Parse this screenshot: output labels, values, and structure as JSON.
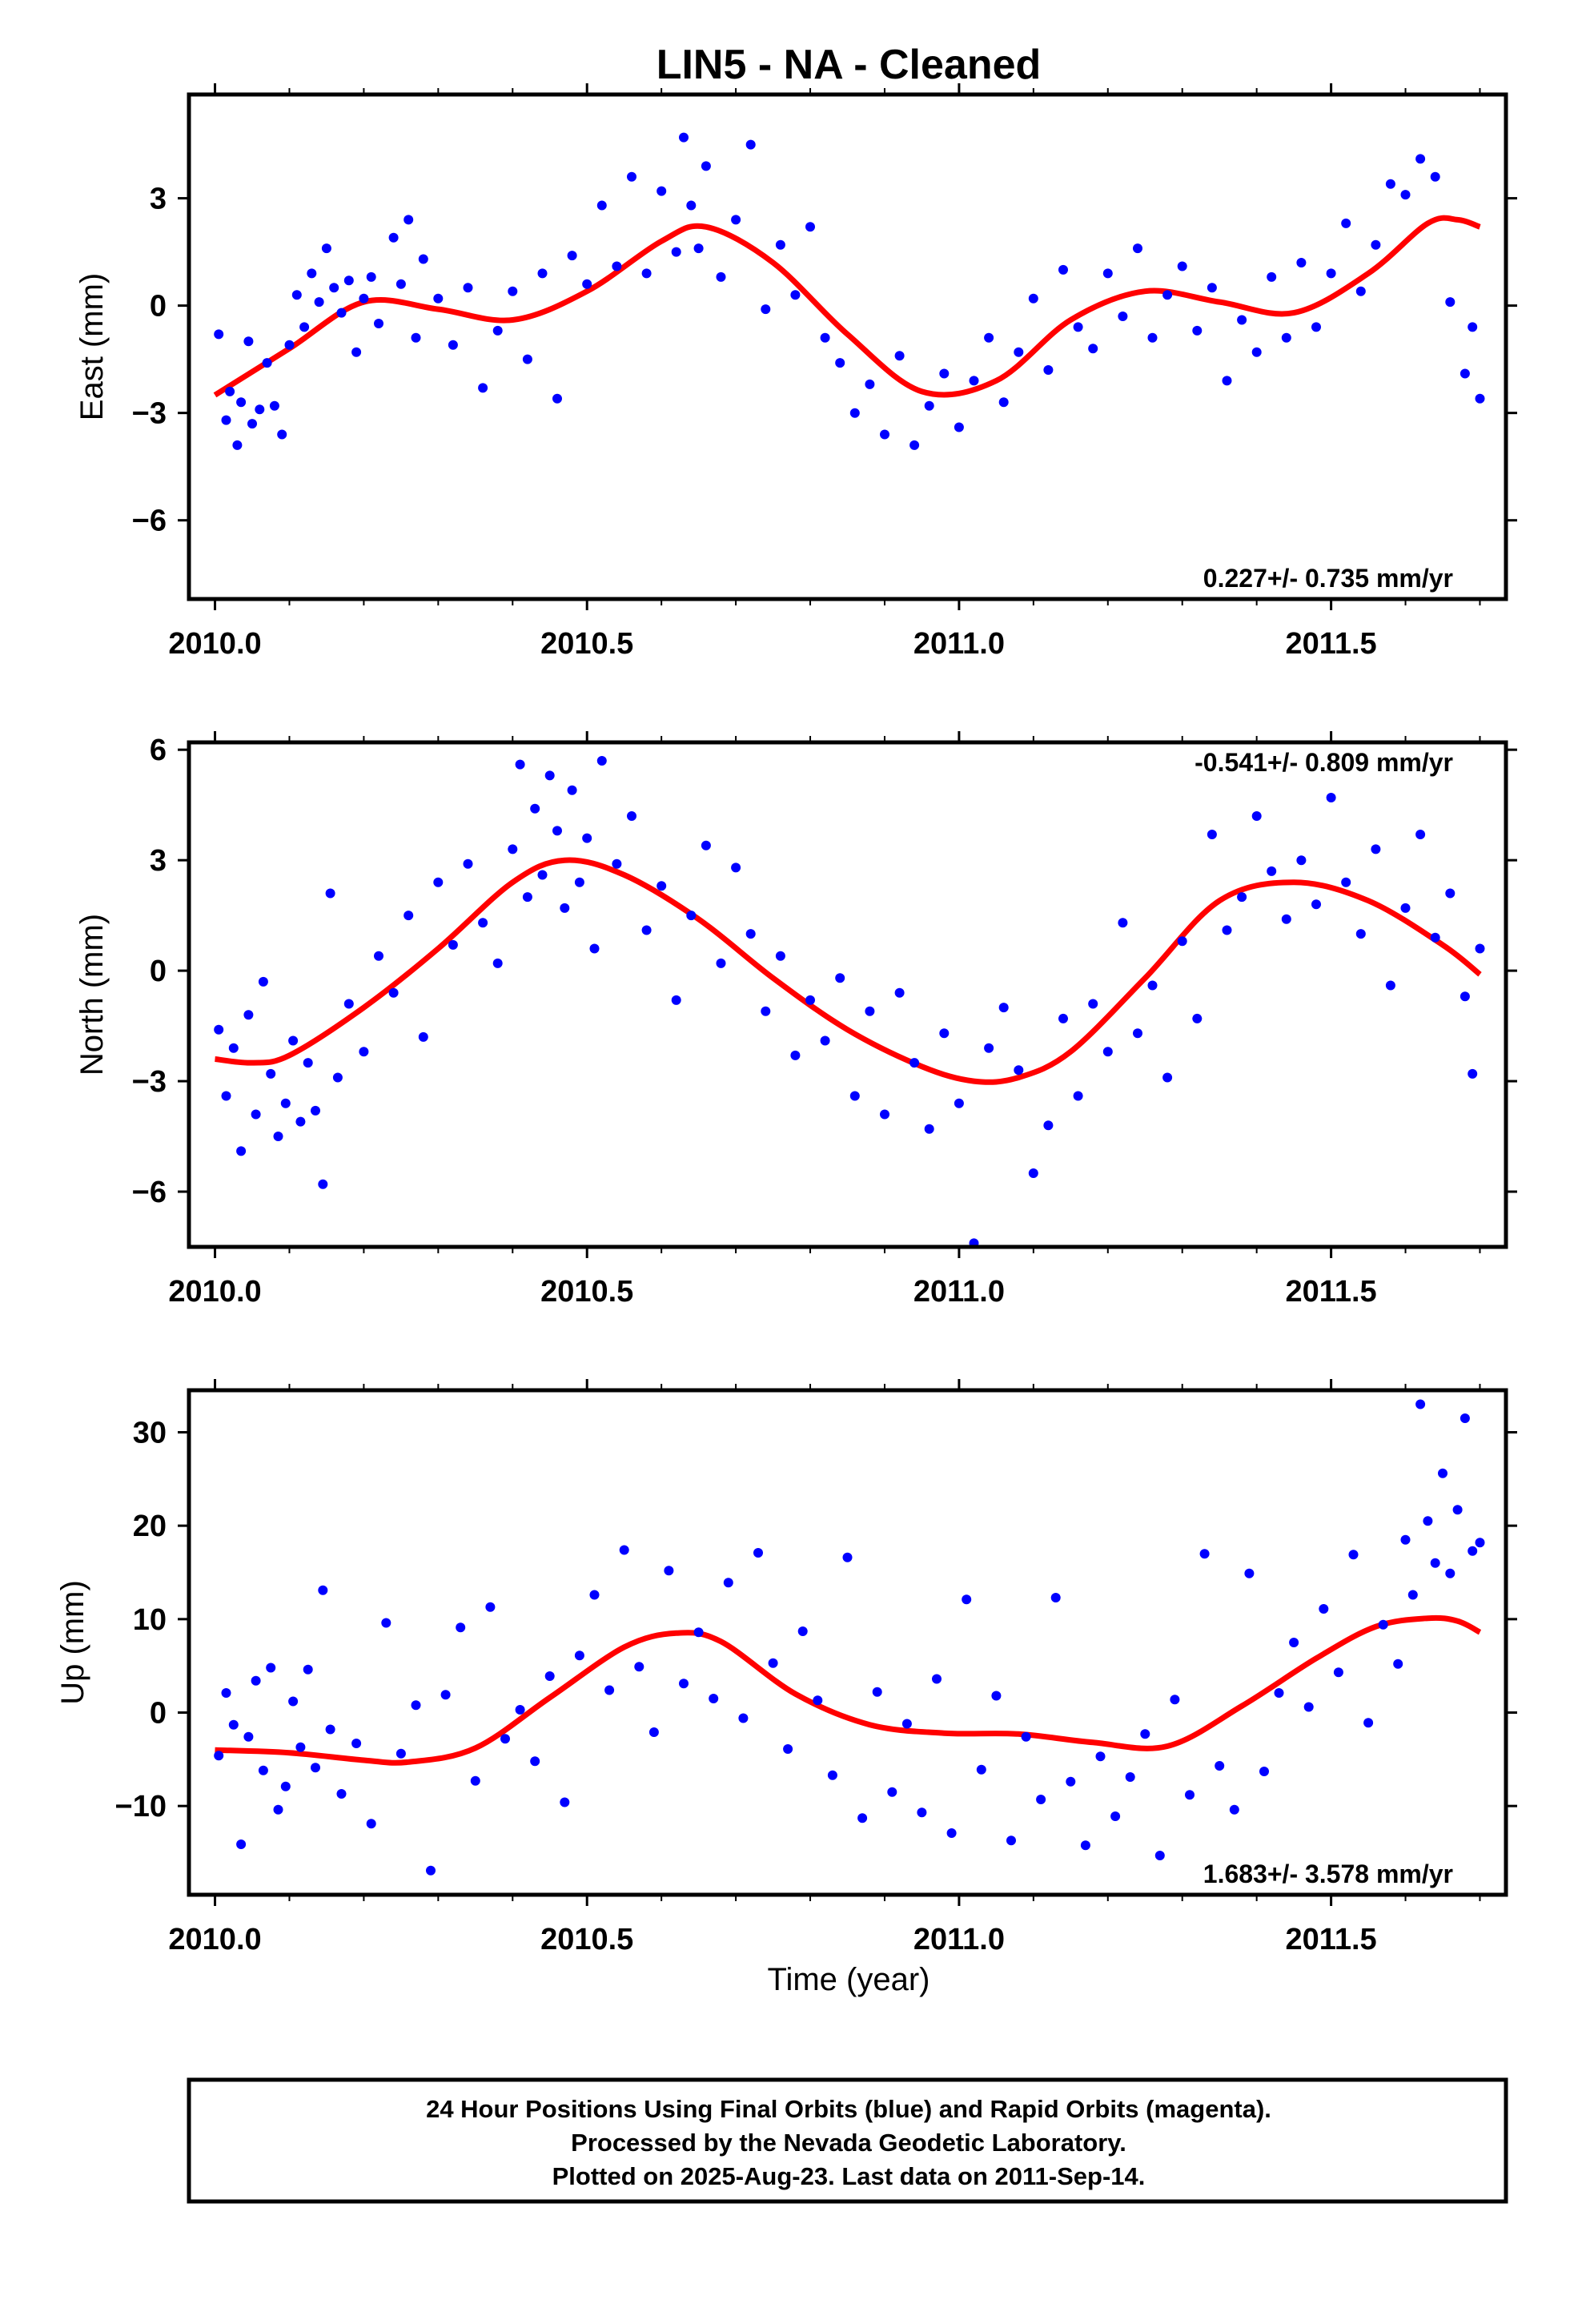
{
  "title": "LIN5  - NA - Cleaned",
  "xlabel": "Time (year)",
  "footer": {
    "lines": [
      "24 Hour Positions Using Final Orbits (blue) and Rapid Orbits (magenta).",
      "Processed by the Nevada Geodetic Laboratory.",
      "Plotted on 2025-Aug-23. Last data on 2011-Sep-14."
    ]
  },
  "colors": {
    "points": "#0000ff",
    "fit": "#ff0000",
    "frame": "#000000"
  },
  "chart_data": [
    {
      "type": "scatter",
      "ylabel": "East (mm)",
      "rate": "0.227+/- 0.735 mm/yr",
      "xlim": [
        2009.965,
        2011.735
      ],
      "ylim": [
        -8.2,
        5.9
      ],
      "xticks": [
        2010.0,
        2010.5,
        2011.0,
        2011.5
      ],
      "xtick_labels": [
        "2010.0",
        "2010.5",
        "2011.0",
        "2011.5"
      ],
      "yticks": [
        3,
        0,
        -3,
        -6
      ],
      "ytick_labels": [
        "3",
        "0",
        "−3",
        "−6"
      ],
      "fit": {
        "x": [
          2010.0,
          2010.1,
          2010.2,
          2010.3,
          2010.4,
          2010.5,
          2010.6,
          2010.66,
          2010.75,
          2010.85,
          2010.95,
          2011.05,
          2011.15,
          2011.25,
          2011.35,
          2011.45,
          2011.55,
          2011.63,
          2011.67,
          2011.7
        ],
        "y": [
          -2.5,
          -1.2,
          0.1,
          -0.1,
          -0.4,
          0.4,
          1.8,
          2.2,
          1.2,
          -0.8,
          -2.4,
          -2.1,
          -0.4,
          0.4,
          0.1,
          -0.2,
          0.9,
          2.3,
          2.4,
          2.2
        ]
      },
      "points": {
        "x": [
          2010.005,
          2010.015,
          2010.02,
          2010.03,
          2010.035,
          2010.045,
          2010.05,
          2010.06,
          2010.07,
          2010.08,
          2010.09,
          2010.1,
          2010.11,
          2010.12,
          2010.13,
          2010.14,
          2010.15,
          2010.16,
          2010.17,
          2010.18,
          2010.19,
          2010.2,
          2010.21,
          2010.22,
          2010.24,
          2010.25,
          2010.26,
          2010.27,
          2010.28,
          2010.3,
          2010.32,
          2010.34,
          2010.36,
          2010.38,
          2010.4,
          2010.42,
          2010.44,
          2010.46,
          2010.48,
          2010.5,
          2010.52,
          2010.54,
          2010.56,
          2010.58,
          2010.6,
          2010.62,
          2010.63,
          2010.64,
          2010.65,
          2010.66,
          2010.68,
          2010.7,
          2010.72,
          2010.74,
          2010.76,
          2010.78,
          2010.8,
          2010.82,
          2010.84,
          2010.86,
          2010.88,
          2010.9,
          2010.92,
          2010.94,
          2010.96,
          2010.98,
          2011.0,
          2011.02,
          2011.04,
          2011.06,
          2011.08,
          2011.1,
          2011.12,
          2011.14,
          2011.16,
          2011.18,
          2011.2,
          2011.22,
          2011.24,
          2011.26,
          2011.28,
          2011.3,
          2011.32,
          2011.34,
          2011.36,
          2011.38,
          2011.4,
          2011.42,
          2011.44,
          2011.46,
          2011.48,
          2011.5,
          2011.52,
          2011.54,
          2011.56,
          2011.58,
          2011.6,
          2011.62,
          2011.64,
          2011.66,
          2011.68,
          2011.69,
          2011.7
        ],
        "y": [
          -0.8,
          -3.2,
          -2.4,
          -3.9,
          -2.7,
          -1.0,
          -3.3,
          -2.9,
          -1.6,
          -2.8,
          -3.6,
          -1.1,
          0.3,
          -0.6,
          0.9,
          0.1,
          1.6,
          0.5,
          -0.2,
          0.7,
          -1.3,
          0.2,
          0.8,
          -0.5,
          1.9,
          0.6,
          2.4,
          -0.9,
          1.3,
          0.2,
          -1.1,
          0.5,
          -2.3,
          -0.7,
          0.4,
          -1.5,
          0.9,
          -2.6,
          1.4,
          0.6,
          2.8,
          1.1,
          3.6,
          0.9,
          3.2,
          1.5,
          4.7,
          2.8,
          1.6,
          3.9,
          0.8,
          2.4,
          4.5,
          -0.1,
          1.7,
          0.3,
          2.2,
          -0.9,
          -1.6,
          -3.0,
          -2.2,
          -3.6,
          -1.4,
          -3.9,
          -2.8,
          -1.9,
          -3.4,
          -2.1,
          -0.9,
          -2.7,
          -1.3,
          0.2,
          -1.8,
          1.0,
          -0.6,
          -1.2,
          0.9,
          -0.3,
          1.6,
          -0.9,
          0.3,
          1.1,
          -0.7,
          0.5,
          -2.1,
          -0.4,
          -1.3,
          0.8,
          -0.9,
          1.2,
          -0.6,
          0.9,
          2.3,
          0.4,
          1.7,
          3.4,
          3.1,
          4.1,
          3.6,
          0.1,
          -1.9,
          -0.6,
          -2.6
        ]
      }
    },
    {
      "type": "scatter",
      "ylabel": "North (mm)",
      "rate": "-0.541+/- 0.809 mm/yr",
      "xlim": [
        2009.965,
        2011.735
      ],
      "ylim": [
        -7.5,
        6.2
      ],
      "xticks": [
        2010.0,
        2010.5,
        2011.0,
        2011.5
      ],
      "xtick_labels": [
        "2010.0",
        "2010.5",
        "2011.0",
        "2011.5"
      ],
      "yticks": [
        6,
        3,
        0,
        -3,
        -6
      ],
      "ytick_labels": [
        "6",
        "3",
        "0",
        "−3",
        "−6"
      ],
      "fit": {
        "x": [
          2010.0,
          2010.05,
          2010.1,
          2010.2,
          2010.3,
          2010.4,
          2010.47,
          2010.55,
          2010.65,
          2010.75,
          2010.85,
          2010.95,
          2011.02,
          2011.08,
          2011.15,
          2011.25,
          2011.35,
          2011.45,
          2011.55,
          2011.65,
          2011.7
        ],
        "y": [
          -2.4,
          -2.5,
          -2.3,
          -1.0,
          0.6,
          2.4,
          3.0,
          2.6,
          1.4,
          -0.2,
          -1.6,
          -2.6,
          -3.0,
          -2.9,
          -2.2,
          -0.2,
          1.9,
          2.4,
          1.9,
          0.7,
          -0.1
        ]
      },
      "points": {
        "x": [
          2010.005,
          2010.015,
          2010.025,
          2010.035,
          2010.045,
          2010.055,
          2010.065,
          2010.075,
          2010.085,
          2010.095,
          2010.105,
          2010.115,
          2010.125,
          2010.135,
          2010.145,
          2010.155,
          2010.165,
          2010.18,
          2010.2,
          2010.22,
          2010.24,
          2010.26,
          2010.28,
          2010.3,
          2010.32,
          2010.34,
          2010.36,
          2010.38,
          2010.4,
          2010.41,
          2010.42,
          2010.43,
          2010.44,
          2010.45,
          2010.46,
          2010.47,
          2010.48,
          2010.49,
          2010.5,
          2010.51,
          2010.52,
          2010.54,
          2010.56,
          2010.58,
          2010.6,
          2010.62,
          2010.64,
          2010.66,
          2010.68,
          2010.7,
          2010.72,
          2010.74,
          2010.76,
          2010.78,
          2010.8,
          2010.82,
          2010.84,
          2010.86,
          2010.88,
          2010.9,
          2010.92,
          2010.94,
          2010.96,
          2010.98,
          2011.0,
          2011.02,
          2011.04,
          2011.06,
          2011.08,
          2011.1,
          2011.12,
          2011.14,
          2011.16,
          2011.18,
          2011.2,
          2011.22,
          2011.24,
          2011.26,
          2011.28,
          2011.3,
          2011.32,
          2011.34,
          2011.36,
          2011.38,
          2011.4,
          2011.42,
          2011.44,
          2011.46,
          2011.48,
          2011.5,
          2011.52,
          2011.54,
          2011.56,
          2011.58,
          2011.6,
          2011.62,
          2011.64,
          2011.66,
          2011.68,
          2011.69,
          2011.7
        ],
        "y": [
          -1.6,
          -3.4,
          -2.1,
          -4.9,
          -1.2,
          -3.9,
          -0.3,
          -2.8,
          -4.5,
          -3.6,
          -1.9,
          -4.1,
          -2.5,
          -3.8,
          -5.8,
          2.1,
          -2.9,
          -0.9,
          -2.2,
          0.4,
          -0.6,
          1.5,
          -1.8,
          2.4,
          0.7,
          2.9,
          1.3,
          0.2,
          3.3,
          5.6,
          2.0,
          4.4,
          2.6,
          5.3,
          3.8,
          1.7,
          4.9,
          2.4,
          3.6,
          0.6,
          5.7,
          2.9,
          4.2,
          1.1,
          2.3,
          -0.8,
          1.5,
          3.4,
          0.2,
          2.8,
          1.0,
          -1.1,
          0.4,
          -2.3,
          -0.8,
          -1.9,
          -0.2,
          -3.4,
          -1.1,
          -3.9,
          -0.6,
          -2.5,
          -4.3,
          -1.7,
          -3.6,
          -7.4,
          -2.1,
          -1.0,
          -2.7,
          -5.5,
          -4.2,
          -1.3,
          -3.4,
          -0.9,
          -2.2,
          1.3,
          -1.7,
          -0.4,
          -2.9,
          0.8,
          -1.3,
          3.7,
          1.1,
          2.0,
          4.2,
          2.7,
          1.4,
          3.0,
          1.8,
          4.7,
          2.4,
          1.0,
          3.3,
          -0.4,
          1.7,
          3.7,
          0.9,
          2.1,
          -0.7,
          -2.8,
          0.6
        ]
      }
    },
    {
      "type": "scatter",
      "ylabel": "Up (mm)",
      "rate": "1.683+/- 3.578 mm/yr",
      "xlim": [
        2009.965,
        2011.735
      ],
      "ylim": [
        -19.5,
        34.5
      ],
      "xticks": [
        2010.0,
        2010.5,
        2011.0,
        2011.5
      ],
      "xtick_labels": [
        "2010.0",
        "2010.5",
        "2011.0",
        "2011.5"
      ],
      "yticks": [
        30,
        20,
        10,
        0,
        -10
      ],
      "ytick_labels": [
        "30",
        "20",
        "10",
        "0",
        "−10"
      ],
      "fit": {
        "x": [
          2010.0,
          2010.1,
          2010.2,
          2010.26,
          2010.35,
          2010.45,
          2010.55,
          2010.62,
          2010.68,
          2010.78,
          2010.88,
          2010.98,
          2011.08,
          2011.18,
          2011.28,
          2011.38,
          2011.48,
          2011.56,
          2011.63,
          2011.67,
          2011.7
        ],
        "y": [
          -4.0,
          -4.3,
          -5.1,
          -5.3,
          -3.8,
          1.6,
          7.0,
          8.5,
          7.6,
          2.0,
          -1.3,
          -2.2,
          -2.3,
          -3.2,
          -3.6,
          0.7,
          5.8,
          9.2,
          10.1,
          9.8,
          8.6
        ]
      },
      "points": {
        "x": [
          2010.005,
          2010.015,
          2010.025,
          2010.035,
          2010.045,
          2010.055,
          2010.065,
          2010.075,
          2010.085,
          2010.095,
          2010.105,
          2010.115,
          2010.125,
          2010.135,
          2010.145,
          2010.155,
          2010.17,
          2010.19,
          2010.21,
          2010.23,
          2010.25,
          2010.27,
          2010.29,
          2010.31,
          2010.33,
          2010.35,
          2010.37,
          2010.39,
          2010.41,
          2010.43,
          2010.45,
          2010.47,
          2010.49,
          2010.51,
          2010.53,
          2010.55,
          2010.57,
          2010.59,
          2010.61,
          2010.63,
          2010.65,
          2010.67,
          2010.69,
          2010.71,
          2010.73,
          2010.75,
          2010.77,
          2010.79,
          2010.81,
          2010.83,
          2010.85,
          2010.87,
          2010.89,
          2010.91,
          2010.93,
          2010.95,
          2010.97,
          2010.99,
          2011.01,
          2011.03,
          2011.05,
          2011.07,
          2011.09,
          2011.11,
          2011.13,
          2011.15,
          2011.17,
          2011.19,
          2011.21,
          2011.23,
          2011.25,
          2011.27,
          2011.29,
          2011.31,
          2011.33,
          2011.35,
          2011.37,
          2011.39,
          2011.41,
          2011.43,
          2011.45,
          2011.47,
          2011.49,
          2011.51,
          2011.53,
          2011.55,
          2011.57,
          2011.59,
          2011.6,
          2011.61,
          2011.62,
          2011.63,
          2011.64,
          2011.65,
          2011.66,
          2011.67,
          2011.68,
          2011.69,
          2011.7
        ],
        "y": [
          -4.6,
          2.1,
          -1.3,
          -14.1,
          -2.6,
          3.4,
          -6.2,
          4.8,
          -10.4,
          -7.9,
          1.2,
          -3.7,
          4.6,
          -5.9,
          13.1,
          -1.8,
          -8.7,
          -3.3,
          -11.9,
          9.6,
          -4.4,
          0.8,
          -16.9,
          1.9,
          9.1,
          -7.3,
          11.3,
          -2.8,
          0.3,
          -5.2,
          3.9,
          -9.6,
          6.1,
          12.6,
          2.4,
          17.4,
          4.9,
          -2.1,
          15.2,
          3.1,
          8.6,
          1.5,
          13.9,
          -0.6,
          17.1,
          5.3,
          -3.9,
          8.7,
          1.3,
          -6.7,
          16.6,
          -11.3,
          2.2,
          -8.5,
          -1.2,
          -10.7,
          3.6,
          -12.9,
          12.1,
          -6.1,
          1.8,
          -13.7,
          -2.6,
          -9.3,
          12.3,
          -7.4,
          -14.2,
          -4.7,
          -11.1,
          -6.9,
          -2.3,
          -15.3,
          1.4,
          -8.8,
          17.0,
          -5.7,
          -10.4,
          14.9,
          -6.3,
          2.1,
          7.5,
          0.6,
          11.1,
          4.3,
          16.9,
          -1.1,
          9.4,
          5.2,
          18.5,
          12.6,
          33.0,
          20.5,
          16.0,
          25.6,
          14.9,
          21.7,
          31.5,
          17.3,
          18.2
        ]
      }
    }
  ]
}
